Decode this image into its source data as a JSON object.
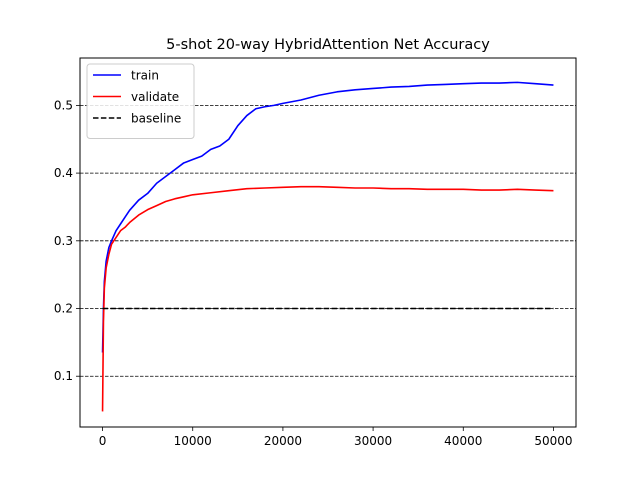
{
  "chart_data": {
    "type": "line",
    "title": "5-shot 20-way HybridAttention Net Accuracy",
    "xlabel": "",
    "ylabel": "",
    "xlim": [
      -2500,
      52500
    ],
    "ylim": [
      0.025,
      0.57
    ],
    "x_ticks": [
      0,
      10000,
      20000,
      30000,
      40000,
      50000
    ],
    "x_tick_labels": [
      "0",
      "10000",
      "20000",
      "30000",
      "40000",
      "50000"
    ],
    "y_ticks": [
      0.1,
      0.2,
      0.3,
      0.4,
      0.5
    ],
    "y_tick_labels": [
      "0.1",
      "0.2",
      "0.3",
      "0.4",
      "0.5"
    ],
    "grid": "horizontal-dashed",
    "legend_position": "upper-left",
    "series": [
      {
        "name": "train",
        "color": "#0000ff",
        "style": "solid",
        "x": [
          0,
          100,
          200,
          400,
          700,
          1000,
          1500,
          2000,
          2500,
          3000,
          4000,
          5000,
          6000,
          7000,
          8000,
          9000,
          10000,
          11000,
          12000,
          13000,
          14000,
          15000,
          16000,
          17000,
          18000,
          19000,
          20000,
          22000,
          24000,
          26000,
          28000,
          30000,
          32000,
          34000,
          36000,
          38000,
          40000,
          42000,
          44000,
          46000,
          48000,
          50000
        ],
        "values": [
          0.135,
          0.2,
          0.24,
          0.27,
          0.29,
          0.3,
          0.315,
          0.325,
          0.335,
          0.345,
          0.36,
          0.37,
          0.385,
          0.395,
          0.405,
          0.415,
          0.42,
          0.425,
          0.435,
          0.44,
          0.45,
          0.47,
          0.485,
          0.495,
          0.498,
          0.5,
          0.503,
          0.508,
          0.515,
          0.52,
          0.523,
          0.525,
          0.527,
          0.528,
          0.53,
          0.531,
          0.532,
          0.533,
          0.533,
          0.534,
          0.532,
          0.53
        ]
      },
      {
        "name": "validate",
        "color": "#ff0000",
        "style": "solid",
        "x": [
          0,
          100,
          200,
          400,
          700,
          1000,
          1500,
          2000,
          2500,
          3000,
          4000,
          5000,
          6000,
          7000,
          8000,
          9000,
          10000,
          12000,
          14000,
          16000,
          18000,
          20000,
          22000,
          24000,
          26000,
          28000,
          30000,
          32000,
          34000,
          36000,
          38000,
          40000,
          42000,
          44000,
          46000,
          48000,
          50000
        ],
        "values": [
          0.048,
          0.18,
          0.23,
          0.26,
          0.28,
          0.295,
          0.305,
          0.315,
          0.32,
          0.327,
          0.338,
          0.346,
          0.352,
          0.358,
          0.362,
          0.365,
          0.368,
          0.371,
          0.374,
          0.377,
          0.378,
          0.379,
          0.38,
          0.38,
          0.379,
          0.378,
          0.378,
          0.377,
          0.377,
          0.376,
          0.376,
          0.376,
          0.375,
          0.375,
          0.376,
          0.375,
          0.374
        ]
      },
      {
        "name": "baseline",
        "color": "#000000",
        "style": "dashed",
        "x": [
          0,
          50000
        ],
        "values": [
          0.2,
          0.2
        ]
      }
    ]
  }
}
